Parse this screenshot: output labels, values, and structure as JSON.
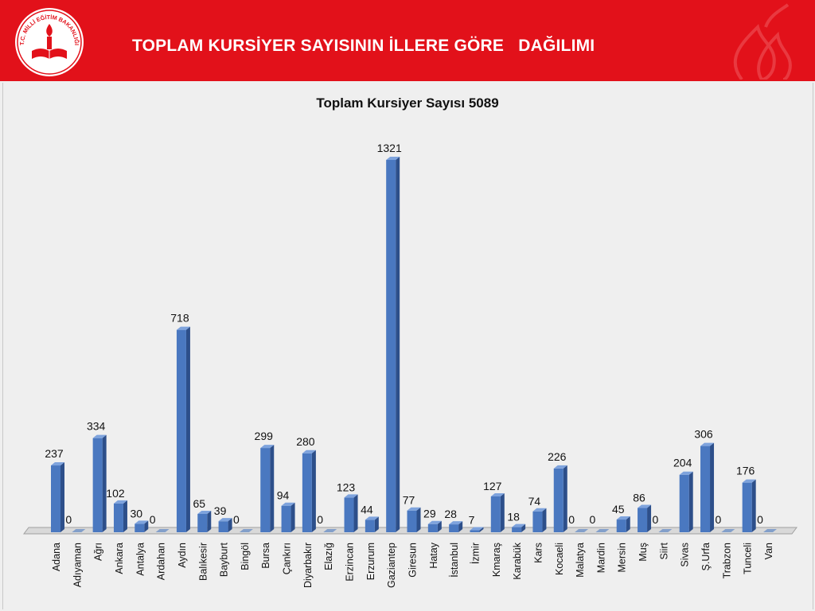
{
  "header": {
    "title": "TOPLAM KURSİYER SAYISININ İLLERE GÖRE   DAĞILIMI",
    "logo_text": "T.C. MİLLİ EĞİTİM BAKANLIĞI",
    "logo_icon": "meb-torch-book-logo-icon",
    "decoration_icon": "flame-watermark-icon"
  },
  "colors": {
    "header_bg": "#e2111a",
    "page_bg": "#efefef",
    "bar_front": "#4a78c0",
    "bar_side": "#2d4f8a",
    "bar_top": "#7ea3dd"
  },
  "chart_data": {
    "type": "bar",
    "title": "Toplam  Kursiyer Sayısı 5089",
    "xlabel": "",
    "ylabel": "",
    "ylim": [
      0,
      1321
    ],
    "grid": false,
    "legend": "none",
    "three_d": true,
    "categories": [
      "Adana",
      "Adıyaman",
      "Ağrı",
      "Ankara",
      "Antalya",
      "Ardahan",
      "Aydın",
      "Balıkesir",
      "Bayburt",
      "Bingöl",
      "Bursa",
      "Çankırı",
      "Diyarbakır",
      "Elazığ",
      "Erzincan",
      "Erzurum",
      "Gaziantep",
      "Giresun",
      "Hatay",
      "İstanbul",
      "İzmir",
      "Kmaraş",
      "Karabük",
      "Kars",
      "Kocaeli",
      "Malatya",
      "Mardin",
      "Mersin",
      "Muş",
      "Siirt",
      "Sivas",
      "Ş.Urfa",
      "Trabzon",
      "Tunceli",
      "Van"
    ],
    "values": [
      237,
      0,
      334,
      102,
      30,
      0,
      718,
      65,
      39,
      0,
      299,
      94,
      280,
      0,
      123,
      44,
      1321,
      77,
      29,
      28,
      7,
      127,
      18,
      74,
      226,
      0,
      0,
      45,
      86,
      0,
      204,
      306,
      0,
      176,
      0
    ],
    "data_labels": [
      "237",
      "0",
      "334",
      "102",
      "30",
      "0",
      "718",
      "65",
      "39",
      "0",
      "299",
      "94",
      "280",
      "0",
      "123",
      "44",
      "1321",
      "77",
      "29",
      "28",
      "7",
      "127",
      "18",
      "74",
      "226",
      "0",
      "0",
      "45",
      "86",
      "0",
      "204",
      "306",
      "0",
      "176",
      "0"
    ]
  }
}
